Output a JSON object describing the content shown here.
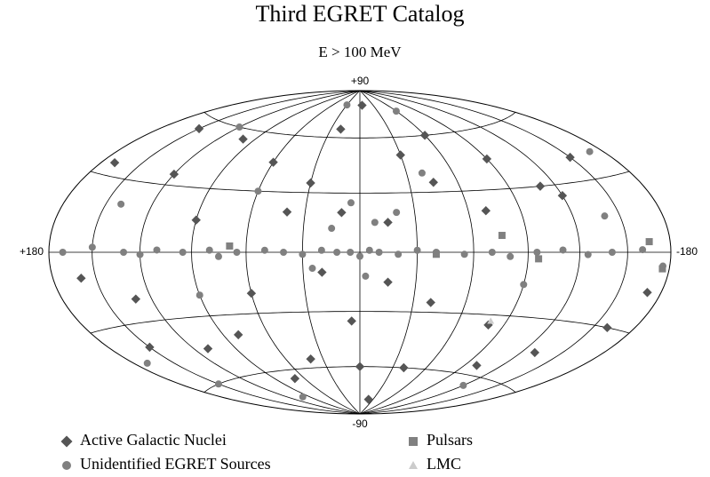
{
  "chart_data": {
    "type": "scatter",
    "projection": "hammer-aitoff",
    "title": "Third EGRET Catalog",
    "subtitle": "E > 100 MeV",
    "xlim": [
      180,
      -180
    ],
    "ylim": [
      -90,
      90
    ],
    "xticks": [
      {
        "value": 180,
        "label": "+180"
      },
      {
        "value": -180,
        "label": "-180"
      }
    ],
    "yticks": [
      {
        "value": 90,
        "label": "+90"
      },
      {
        "value": -90,
        "label": "-90"
      }
    ],
    "grid_lon": [
      150,
      120,
      90,
      60,
      30,
      0,
      -30,
      -60,
      -90,
      -120,
      -150
    ],
    "grid_lat": [
      -60,
      -30,
      0,
      30,
      60
    ],
    "series": [
      {
        "name": "Active Galactic Nuclei",
        "color": "#555555",
        "marker": "diamond",
        "x": [
          -5,
          20,
          -60,
          100,
          -30,
          -90,
          60,
          150,
          -150,
          170,
          30,
          -45,
          120,
          -120,
          10,
          -15,
          40,
          -70,
          90,
          -110,
          160,
          -170,
          130,
          60,
          20,
          -15,
          -40,
          5,
          80,
          -80,
          110,
          -130,
          0,
          -40,
          40,
          150,
          -160,
          -100,
          70,
          -20
        ],
        "values": [
          80,
          65,
          60,
          55,
          50,
          45,
          45,
          55,
          40,
          35,
          35,
          35,
          35,
          25,
          20,
          15,
          20,
          20,
          15,
          30,
          -10,
          -15,
          -20,
          -20,
          -10,
          -15,
          -25,
          -35,
          -40,
          -35,
          -45,
          -45,
          -60,
          -60,
          -55,
          -40,
          -30,
          -55,
          -65,
          -80
        ]
      },
      {
        "name": "Unidentified EGRET Sources",
        "color": "#808080",
        "marker": "circle",
        "x": [
          170,
          150,
          130,
          120,
          110,
          95,
          80,
          75,
          65,
          50,
          40,
          30,
          20,
          12,
          5,
          0,
          -5,
          -10,
          -20,
          -30,
          -40,
          -55,
          -70,
          -80,
          -95,
          -110,
          -125,
          -140,
          -160,
          -175,
          5,
          -8,
          15,
          -20,
          25,
          -3,
          140,
          -140,
          90,
          -90,
          150,
          -60,
          30,
          100,
          -120,
          170,
          -170,
          60,
          -40,
          120
        ],
        "values": [
          0,
          2,
          0,
          -1,
          1,
          0,
          1,
          -2,
          0,
          1,
          0,
          -1,
          1,
          0,
          0,
          -2,
          1,
          0,
          -1,
          1,
          0,
          -1,
          0,
          -2,
          0,
          1,
          -1,
          0,
          1,
          -5,
          25,
          15,
          12,
          20,
          -8,
          -12,
          20,
          15,
          -20,
          -15,
          -60,
          75,
          80,
          -75,
          -65,
          -45,
          40,
          30,
          40,
          60
        ]
      },
      {
        "name": "Pulsars",
        "color": "#808080",
        "marker": "square",
        "x": [
          -175,
          -96,
          -165,
          69,
          -40,
          -76
        ],
        "values": [
          -6,
          -3,
          4,
          3,
          -1,
          8
        ]
      },
      {
        "name": "LMC",
        "color": "#cccccc",
        "marker": "triangle",
        "x": [
          -80
        ],
        "values": [
          -33
        ]
      }
    ]
  }
}
